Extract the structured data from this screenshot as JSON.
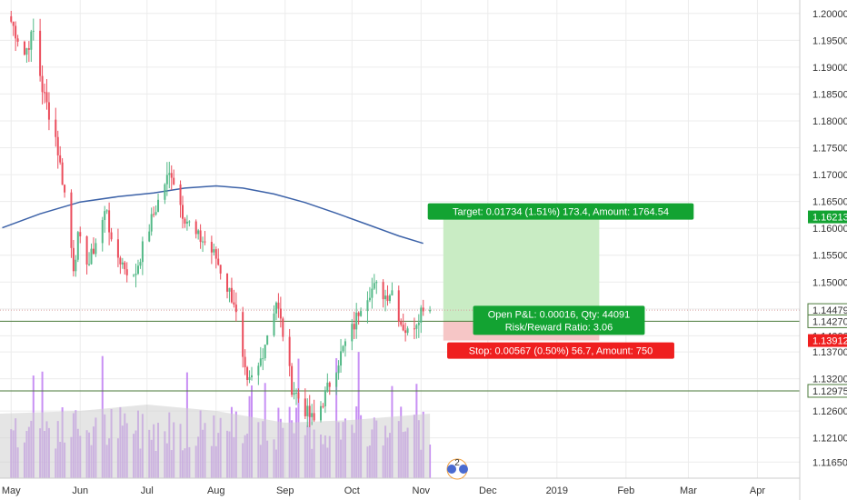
{
  "chart_data": {
    "type": "candlestick",
    "instrument_axis": "price",
    "x_ticks": [
      {
        "label": "May",
        "date": "2018-05-01"
      },
      {
        "label": "Jun",
        "date": "2018-06-01"
      },
      {
        "label": "Jul",
        "date": "2018-07-01"
      },
      {
        "label": "Aug",
        "date": "2018-08-01"
      },
      {
        "label": "Sep",
        "date": "2018-09-01"
      },
      {
        "label": "Oct",
        "date": "2018-10-01"
      },
      {
        "label": "Nov",
        "date": "2018-11-01"
      },
      {
        "label": "Dec",
        "date": "2018-12-01"
      },
      {
        "label": "2019",
        "date": "2019-01-01"
      },
      {
        "label": "Feb",
        "date": "2019-02-01"
      },
      {
        "label": "Mar",
        "date": "2019-03-01"
      },
      {
        "label": "Apr",
        "date": "2019-04-01"
      }
    ],
    "xlim": [
      "2018-04-26",
      "2019-04-20"
    ],
    "y_ticks": [
      "1.20000",
      "1.19500",
      "1.19000",
      "1.18500",
      "1.18000",
      "1.17500",
      "1.17000",
      "1.16500",
      "1.16000",
      "1.15500",
      "1.15000",
      "1.14500",
      "1.14000",
      "1.13700",
      "1.13200",
      "1.12600",
      "1.12100",
      "1.11650"
    ],
    "ylim": [
      1.1135,
      1.2025
    ],
    "grid": true,
    "colors": {
      "up": "#53b987",
      "down": "#eb4d5c",
      "ma": "#3c62a8",
      "volume": "#b56bf0",
      "volume_ma": "#d0d0d0",
      "hline": "#4a7a3a",
      "target": "#13a332",
      "stop": "#ef1f1f",
      "target_zone": "#c9ecc4",
      "stop_zone": "#f6c6c6",
      "axis_text": "#333333"
    },
    "price_path": [
      [
        "2018-05-01",
        1.1985
      ],
      [
        "2018-05-07",
        1.1925
      ],
      [
        "2018-05-11",
        1.1965
      ],
      [
        "2018-05-15",
        1.186
      ],
      [
        "2018-05-21",
        1.177
      ],
      [
        "2018-05-25",
        1.1665
      ],
      [
        "2018-05-29",
        1.153
      ],
      [
        "2018-05-31",
        1.158
      ],
      [
        "2018-06-05",
        1.1535
      ],
      [
        "2018-06-08",
        1.1575
      ],
      [
        "2018-06-13",
        1.164
      ],
      [
        "2018-06-15",
        1.1565
      ],
      [
        "2018-06-20",
        1.1535
      ],
      [
        "2018-06-25",
        1.1505
      ],
      [
        "2018-06-28",
        1.155
      ],
      [
        "2018-07-03",
        1.1615
      ],
      [
        "2018-07-09",
        1.1685
      ],
      [
        "2018-07-12",
        1.1705
      ],
      [
        "2018-07-17",
        1.163
      ],
      [
        "2018-07-23",
        1.1585
      ],
      [
        "2018-07-27",
        1.1575
      ],
      [
        "2018-08-01",
        1.1545
      ],
      [
        "2018-08-06",
        1.149
      ],
      [
        "2018-08-09",
        1.1465
      ],
      [
        "2018-08-13",
        1.135
      ],
      [
        "2018-08-15",
        1.1305
      ],
      [
        "2018-08-20",
        1.134
      ],
      [
        "2018-08-24",
        1.1405
      ],
      [
        "2018-08-28",
        1.1465
      ],
      [
        "2018-08-31",
        1.1405
      ],
      [
        "2018-09-04",
        1.1305
      ],
      [
        "2018-09-07",
        1.1285
      ],
      [
        "2018-09-11",
        1.1255
      ],
      [
        "2018-09-14",
        1.124
      ],
      [
        "2018-09-19",
        1.129
      ],
      [
        "2018-09-24",
        1.1345
      ],
      [
        "2018-09-28",
        1.1385
      ],
      [
        "2018-10-02",
        1.142
      ],
      [
        "2018-10-05",
        1.146
      ],
      [
        "2018-10-09",
        1.1485
      ],
      [
        "2018-10-12",
        1.149
      ],
      [
        "2018-10-16",
        1.1475
      ],
      [
        "2018-10-19",
        1.1485
      ],
      [
        "2018-10-23",
        1.1425
      ],
      [
        "2018-10-26",
        1.1405
      ],
      [
        "2018-10-30",
        1.143
      ],
      [
        "2018-11-02",
        1.1458
      ],
      [
        "2018-11-05",
        1.145
      ]
    ],
    "moving_average": [
      [
        "2018-04-27",
        1.1601
      ],
      [
        "2018-05-14",
        1.1627
      ],
      [
        "2018-06-01",
        1.1649
      ],
      [
        "2018-06-18",
        1.1659
      ],
      [
        "2018-07-04",
        1.1666
      ],
      [
        "2018-07-18",
        1.1675
      ],
      [
        "2018-08-01",
        1.1679
      ],
      [
        "2018-08-13",
        1.1675
      ],
      [
        "2018-08-27",
        1.1664
      ],
      [
        "2018-09-10",
        1.1648
      ],
      [
        "2018-09-24",
        1.1628
      ],
      [
        "2018-10-08",
        1.1607
      ],
      [
        "2018-10-22",
        1.1586
      ],
      [
        "2018-11-02",
        1.1572
      ]
    ],
    "horizontal_lines": [
      1.1427,
      1.12975
    ],
    "current_price": 1.14479,
    "position": {
      "entry": 1.1427,
      "target": 1.16213,
      "stop": 1.13912,
      "start_date": "2018-11-11",
      "end_date": "2019-01-20"
    },
    "price_labels": {
      "target": "1.16213",
      "current": "1.14479",
      "entry": "1.14270",
      "stop": "1.13912",
      "line2": "1.12975"
    },
    "annotations": {
      "target": "Target: 0.01734 (1.51%) 173.4, Amount: 1764.54",
      "pnl_line1": "Open P&L: 0.00016, Qty: 44091",
      "pnl_line2": "Risk/Reward Ratio: 3.06",
      "stop": "Stop: 0.00567 (0.50%) 56.7, Amount: 750"
    },
    "event_badge": "2"
  }
}
